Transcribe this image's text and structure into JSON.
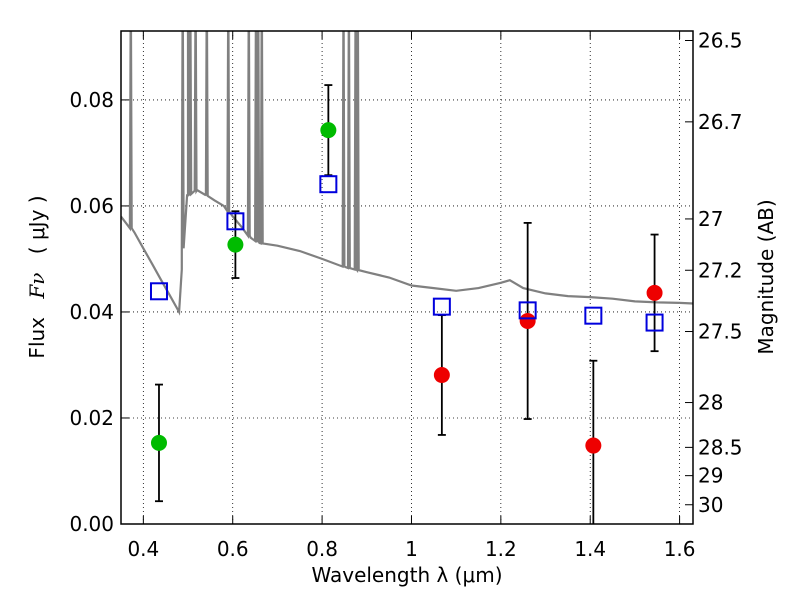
{
  "chart_data": {
    "type": "scatter",
    "xlabel": "Wavelength  λ (μm)",
    "ylabel_left_prefix": "Flux",
    "ylabel_left_symbol": "Fν",
    "ylabel_left_unit": "( μJy )",
    "ylabel_right": "Magnitude (AB)",
    "xlim": [
      0.35,
      1.63
    ],
    "ylim": [
      0,
      0.093
    ],
    "grid": true,
    "x_ticks": [
      {
        "value": 0.4,
        "label": "0.4"
      },
      {
        "value": 0.6,
        "label": "0.6"
      },
      {
        "value": 0.8,
        "label": "0.8"
      },
      {
        "value": 1.0,
        "label": "1"
      },
      {
        "value": 1.2,
        "label": "1.2"
      },
      {
        "value": 1.4,
        "label": "1.4"
      },
      {
        "value": 1.6,
        "label": "1.6"
      }
    ],
    "y_ticks": [
      {
        "value": 0.0,
        "label": "0.00"
      },
      {
        "value": 0.02,
        "label": "0.02"
      },
      {
        "value": 0.04,
        "label": "0.04"
      },
      {
        "value": 0.06,
        "label": "0.06"
      },
      {
        "value": 0.08,
        "label": "0.08"
      }
    ],
    "right_ticks": [
      {
        "mag": 26.5,
        "label": "26.5"
      },
      {
        "mag": 26.7,
        "label": "26.7"
      },
      {
        "mag": 27.0,
        "label": "27"
      },
      {
        "mag": 27.2,
        "label": "27.2"
      },
      {
        "mag": 27.5,
        "label": "27.5"
      },
      {
        "mag": 28.0,
        "label": "28"
      },
      {
        "mag": 28.5,
        "label": "28.5"
      },
      {
        "mag": 29.0,
        "label": "29"
      },
      {
        "mag": 30.0,
        "label": "30"
      }
    ],
    "colors": {
      "green": "#00bb00",
      "red": "#ee0000",
      "model_box": "#0000dd",
      "sed": "#808080",
      "errorbar": "#000000"
    },
    "series": [
      {
        "name": "optical photometry",
        "marker": "circle",
        "color": "green",
        "points": [
          {
            "x": 0.435,
            "y": 0.0153,
            "yerr": 0.011
          },
          {
            "x": 0.606,
            "y": 0.0527,
            "yerr": 0.0063
          },
          {
            "x": 0.814,
            "y": 0.0743,
            "yerr": 0.0085
          }
        ]
      },
      {
        "name": "near-IR photometry",
        "marker": "circle",
        "color": "red",
        "points": [
          {
            "x": 1.068,
            "y": 0.0281,
            "yerr": 0.0113
          },
          {
            "x": 1.26,
            "y": 0.0383,
            "yerr": 0.0185
          },
          {
            "x": 1.407,
            "y": 0.0148,
            "yerr": 0.016
          },
          {
            "x": 1.544,
            "y": 0.0436,
            "yerr": 0.011
          }
        ]
      },
      {
        "name": "model band flux",
        "marker": "open-square",
        "color": "model_box",
        "points": [
          {
            "x": 0.435,
            "y": 0.0439
          },
          {
            "x": 0.606,
            "y": 0.0571
          },
          {
            "x": 0.814,
            "y": 0.0641
          },
          {
            "x": 1.068,
            "y": 0.041
          },
          {
            "x": 1.26,
            "y": 0.0403
          },
          {
            "x": 1.407,
            "y": 0.0393
          },
          {
            "x": 1.544,
            "y": 0.038
          }
        ]
      }
    ],
    "sed_curve": {
      "name": "model SED",
      "color": "sed",
      "x": [
        0.35,
        0.38,
        0.4,
        0.42,
        0.44,
        0.46,
        0.48,
        0.486,
        0.49,
        0.5,
        0.52,
        0.54,
        0.56,
        0.58,
        0.6,
        0.62,
        0.64,
        0.66,
        0.7,
        0.75,
        0.8,
        0.85,
        0.9,
        0.95,
        1.0,
        1.05,
        1.1,
        1.15,
        1.2,
        1.22,
        1.25,
        1.3,
        1.35,
        1.4,
        1.45,
        1.5,
        1.55,
        1.6,
        1.63
      ],
      "y": [
        0.058,
        0.055,
        0.052,
        0.049,
        0.046,
        0.043,
        0.04,
        0.048,
        0.056,
        0.062,
        0.063,
        0.062,
        0.061,
        0.06,
        0.058,
        0.056,
        0.054,
        0.053,
        0.0525,
        0.0515,
        0.05,
        0.0485,
        0.0475,
        0.0465,
        0.045,
        0.0445,
        0.044,
        0.0445,
        0.0455,
        0.046,
        0.0445,
        0.0435,
        0.043,
        0.0428,
        0.0425,
        0.042,
        0.0418,
        0.0417,
        0.0416
      ]
    },
    "emission_lines": [
      0.372,
      0.488,
      0.5,
      0.505,
      0.517,
      0.542,
      0.59,
      0.636,
      0.652,
      0.657,
      0.665,
      0.848,
      0.86,
      0.875,
      0.88
    ]
  }
}
